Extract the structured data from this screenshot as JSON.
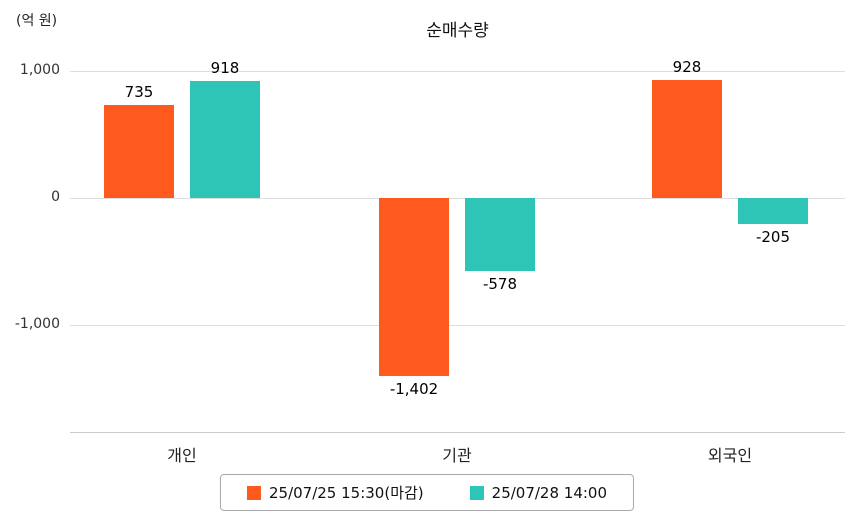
{
  "title": "순매수량",
  "y_unit_label": "(억 원)",
  "chart_data": {
    "type": "bar",
    "title": "순매수량",
    "ylabel": "(억 원)",
    "categories": [
      "개인",
      "기관",
      "외국인"
    ],
    "series": [
      {
        "name": "25/07/25 15:30(마감)",
        "color": "#FF5A1E",
        "values": [
          735,
          -1402,
          928
        ]
      },
      {
        "name": "25/07/28 14:00",
        "color": "#2EC5B6",
        "values": [
          918,
          -578,
          -205
        ]
      }
    ],
    "yticks": [
      1000,
      0,
      -1000
    ],
    "ylim": [
      -1600,
      1250
    ],
    "grid": true,
    "legend_position": "bottom",
    "value_labels": [
      "735",
      "918",
      "-1,402",
      "-578",
      "928",
      "-205"
    ]
  }
}
